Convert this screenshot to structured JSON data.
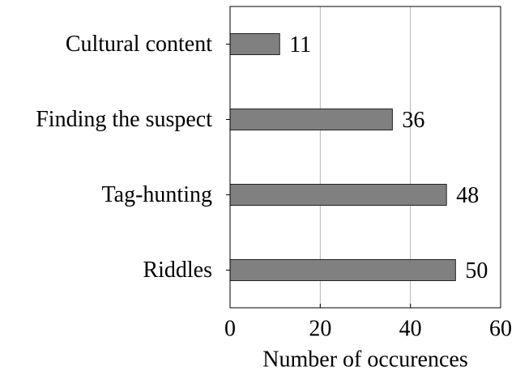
{
  "chart_data": {
    "type": "barh",
    "categories": [
      "Cultural content",
      "Finding the suspect",
      "Tag-hunting",
      "Riddles"
    ],
    "values": [
      11,
      36,
      48,
      50
    ],
    "color": "#808080",
    "xlabel": "Number of occurences",
    "xlim": [
      0,
      60
    ],
    "xticks": [
      0,
      20,
      40,
      60
    ],
    "grid": true
  }
}
